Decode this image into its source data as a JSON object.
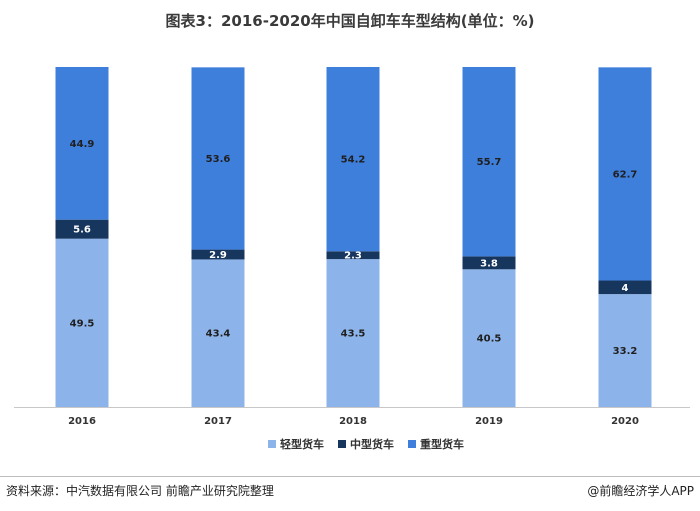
{
  "title": "图表3：2016-2020年中国自卸车车型结构(单位：%)",
  "source": "资料来源：中汽数据有限公司 前瞻产业研究院整理",
  "brand": "@前瞻经济学人APP",
  "colors": {
    "light": "#8db4ea",
    "medium": "#17365d",
    "heavy": "#3f7fdc"
  },
  "chart_data": {
    "type": "bar",
    "stacked": true,
    "categories": [
      "2016",
      "2017",
      "2018",
      "2019",
      "2020"
    ],
    "series": [
      {
        "name": "轻型货车",
        "values": [
          49.5,
          43.4,
          43.5,
          40.5,
          33.2
        ]
      },
      {
        "name": "中型货车",
        "values": [
          5.6,
          2.9,
          2.3,
          3.8,
          4
        ]
      },
      {
        "name": "重型货车",
        "values": [
          44.9,
          53.6,
          54.2,
          55.7,
          62.7
        ]
      }
    ],
    "ylim": [
      0,
      100
    ],
    "legend_position": "bottom",
    "grid": false
  }
}
